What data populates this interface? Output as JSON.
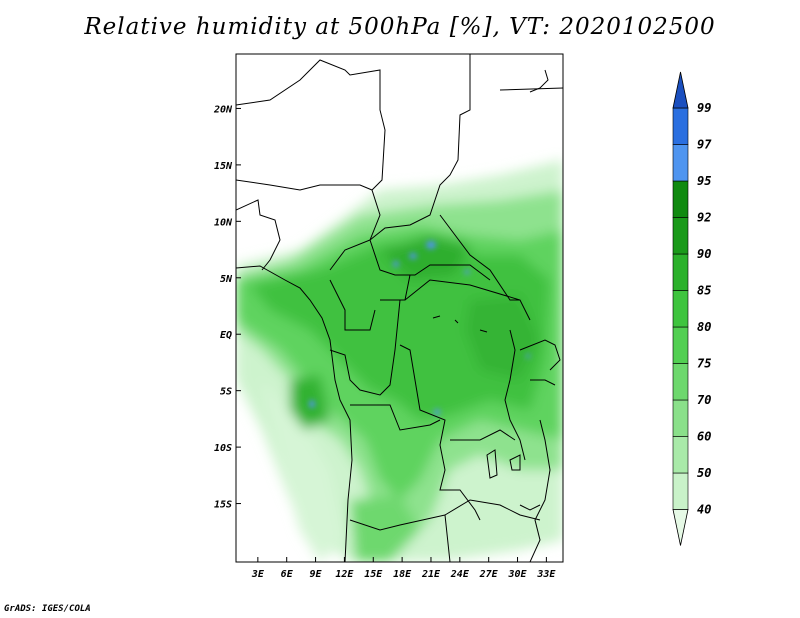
{
  "title": "Relative humidity at 500hPa [%], VT: 2020102500",
  "credit": "GrADS: IGES/COLA",
  "map": {
    "lon_range": [
      0,
      34
    ],
    "lat_range": [
      -20,
      25
    ],
    "x_ticks": [
      "3E",
      "6E",
      "9E",
      "12E",
      "15E",
      "18E",
      "21E",
      "24E",
      "27E",
      "30E",
      "33E"
    ],
    "y_ticks": [
      "20N",
      "15N",
      "10N",
      "5N",
      "EQ",
      "5S",
      "10S",
      "15S"
    ]
  },
  "colorbar": {
    "labels": [
      "40",
      "50",
      "60",
      "70",
      "75",
      "80",
      "85",
      "90",
      "92",
      "95",
      "97",
      "99"
    ],
    "colors": [
      "#e6f9e6",
      "#c9f2c9",
      "#a9eaa9",
      "#8ae08a",
      "#6dd86d",
      "#52cf52",
      "#3ec43e",
      "#2bb12b",
      "#1a9a1a",
      "#108a10",
      "#4f95f0",
      "#2a6fe0",
      "#1a4fbf"
    ]
  },
  "chart_data": {
    "type": "heatmap",
    "title": "Relative humidity at 500hPa [%], VT: 2020102500",
    "x_tick_labels": [
      "3E",
      "6E",
      "9E",
      "12E",
      "15E",
      "18E",
      "21E",
      "24E",
      "27E",
      "30E",
      "33E"
    ],
    "y_tick_labels": [
      "20N",
      "15N",
      "10N",
      "5N",
      "EQ",
      "5S",
      "10S",
      "15S"
    ],
    "color_levels": [
      40,
      50,
      60,
      70,
      75,
      80,
      85,
      90,
      92,
      95,
      97,
      99
    ]
  }
}
